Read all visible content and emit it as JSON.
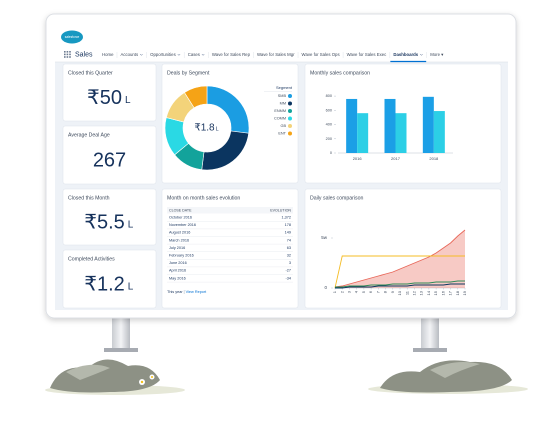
{
  "app": {
    "logo": "salesforce",
    "name": "Sales",
    "nav": [
      {
        "label": "Home"
      },
      {
        "label": "Accounts",
        "dropdown": true
      },
      {
        "label": "Opportunities",
        "dropdown": true
      },
      {
        "label": "Cases",
        "dropdown": true
      },
      {
        "label": "Wave for Sales Rep"
      },
      {
        "label": "Wave for Sales Mgr"
      },
      {
        "label": "Wave for Sales Ops"
      },
      {
        "label": "Wave for Sales Exec"
      },
      {
        "label": "Dashboards",
        "dropdown": true,
        "active": true
      },
      {
        "label": "More ▾"
      }
    ]
  },
  "kpis": [
    {
      "title": "Closed this Quarter",
      "value": "₹50",
      "unit": "L"
    },
    {
      "title": "Average Deal Age",
      "value": "267"
    },
    {
      "title": "Closed this Month",
      "value": "₹5.5",
      "unit": "L"
    },
    {
      "title": "Completed Activities",
      "value": "₹1.2",
      "unit": "L"
    }
  ],
  "table": {
    "title": "Month on month sales evolution",
    "columns": [
      "CLOSE DATE",
      "EVOLUTION"
    ],
    "rows": [
      [
        "October 2016",
        "1,372"
      ],
      [
        "November 2016",
        "178"
      ],
      [
        "August 2016",
        "149"
      ],
      [
        "March 2016",
        "74"
      ],
      [
        "July 2016",
        "63"
      ],
      [
        "February 2016",
        "32"
      ],
      [
        "June 2016",
        "3"
      ],
      [
        "April 2016",
        "-27"
      ],
      [
        "May 2016",
        "-34"
      ]
    ],
    "footer_period": "This year",
    "footer_link": "View Report"
  },
  "chart_data": [
    {
      "type": "pie",
      "title": "Deals by Segment",
      "center_label": "₹1.8",
      "center_unit": "L",
      "legend_title": "Segment",
      "categories": [
        "SMB",
        "MM",
        "ENMM",
        "COMM",
        "GB",
        "ENT"
      ],
      "values": [
        27,
        25,
        12,
        15,
        12,
        9
      ],
      "colors": [
        "#1b9de2",
        "#0b3560",
        "#13a39b",
        "#2ad9e4",
        "#f3d37a",
        "#f5a316"
      ]
    },
    {
      "type": "bar",
      "title": "Monthly sales comparison",
      "categories": [
        "2016",
        "2017",
        "2018"
      ],
      "series": [
        {
          "color": "#1b9fe6",
          "values": [
            760,
            760,
            790
          ]
        },
        {
          "color": "#2ccfe6",
          "values": [
            560,
            560,
            590
          ]
        }
      ],
      "ylim": [
        0,
        900
      ],
      "yticks": [
        0,
        200,
        400,
        600,
        800
      ]
    },
    {
      "type": "line",
      "title": "Daily sales comparison",
      "x": [
        1,
        2,
        3,
        4,
        5,
        6,
        7,
        8,
        9,
        10,
        11,
        12,
        13,
        14,
        15,
        16,
        17,
        18,
        19
      ],
      "xlim": [
        1,
        19
      ],
      "xticks": [
        1,
        2,
        3,
        4,
        5,
        6,
        7,
        8,
        9,
        10,
        11,
        12,
        13,
        14,
        15,
        16,
        17,
        18,
        19
      ],
      "ylim": [
        0,
        60
      ],
      "yticks": [
        0,
        {
          "value": 50,
          "label": "5w"
        }
      ],
      "series": [
        {
          "color": "#e8685a",
          "area": true,
          "values": [
            1,
            2,
            4,
            6,
            8,
            10,
            12,
            14,
            16,
            19,
            22,
            25,
            28,
            31,
            35,
            40,
            45,
            52,
            58
          ]
        },
        {
          "color": "#f4bc25",
          "values": [
            0,
            32,
            32,
            32,
            32,
            32,
            32,
            32,
            32,
            32,
            32,
            32,
            32,
            32,
            32,
            32,
            32,
            32,
            32
          ]
        },
        {
          "color": "#2e8b57",
          "values": [
            1,
            1,
            2,
            2,
            2,
            3,
            3,
            3,
            4,
            4,
            4,
            5,
            5,
            5,
            6,
            6,
            6,
            7,
            7
          ]
        },
        {
          "color": "#0b3560",
          "values": [
            0,
            0,
            1,
            1,
            1,
            1,
            2,
            2,
            2,
            2,
            2,
            3,
            3,
            3,
            3,
            3,
            4,
            4,
            4
          ]
        }
      ]
    }
  ]
}
